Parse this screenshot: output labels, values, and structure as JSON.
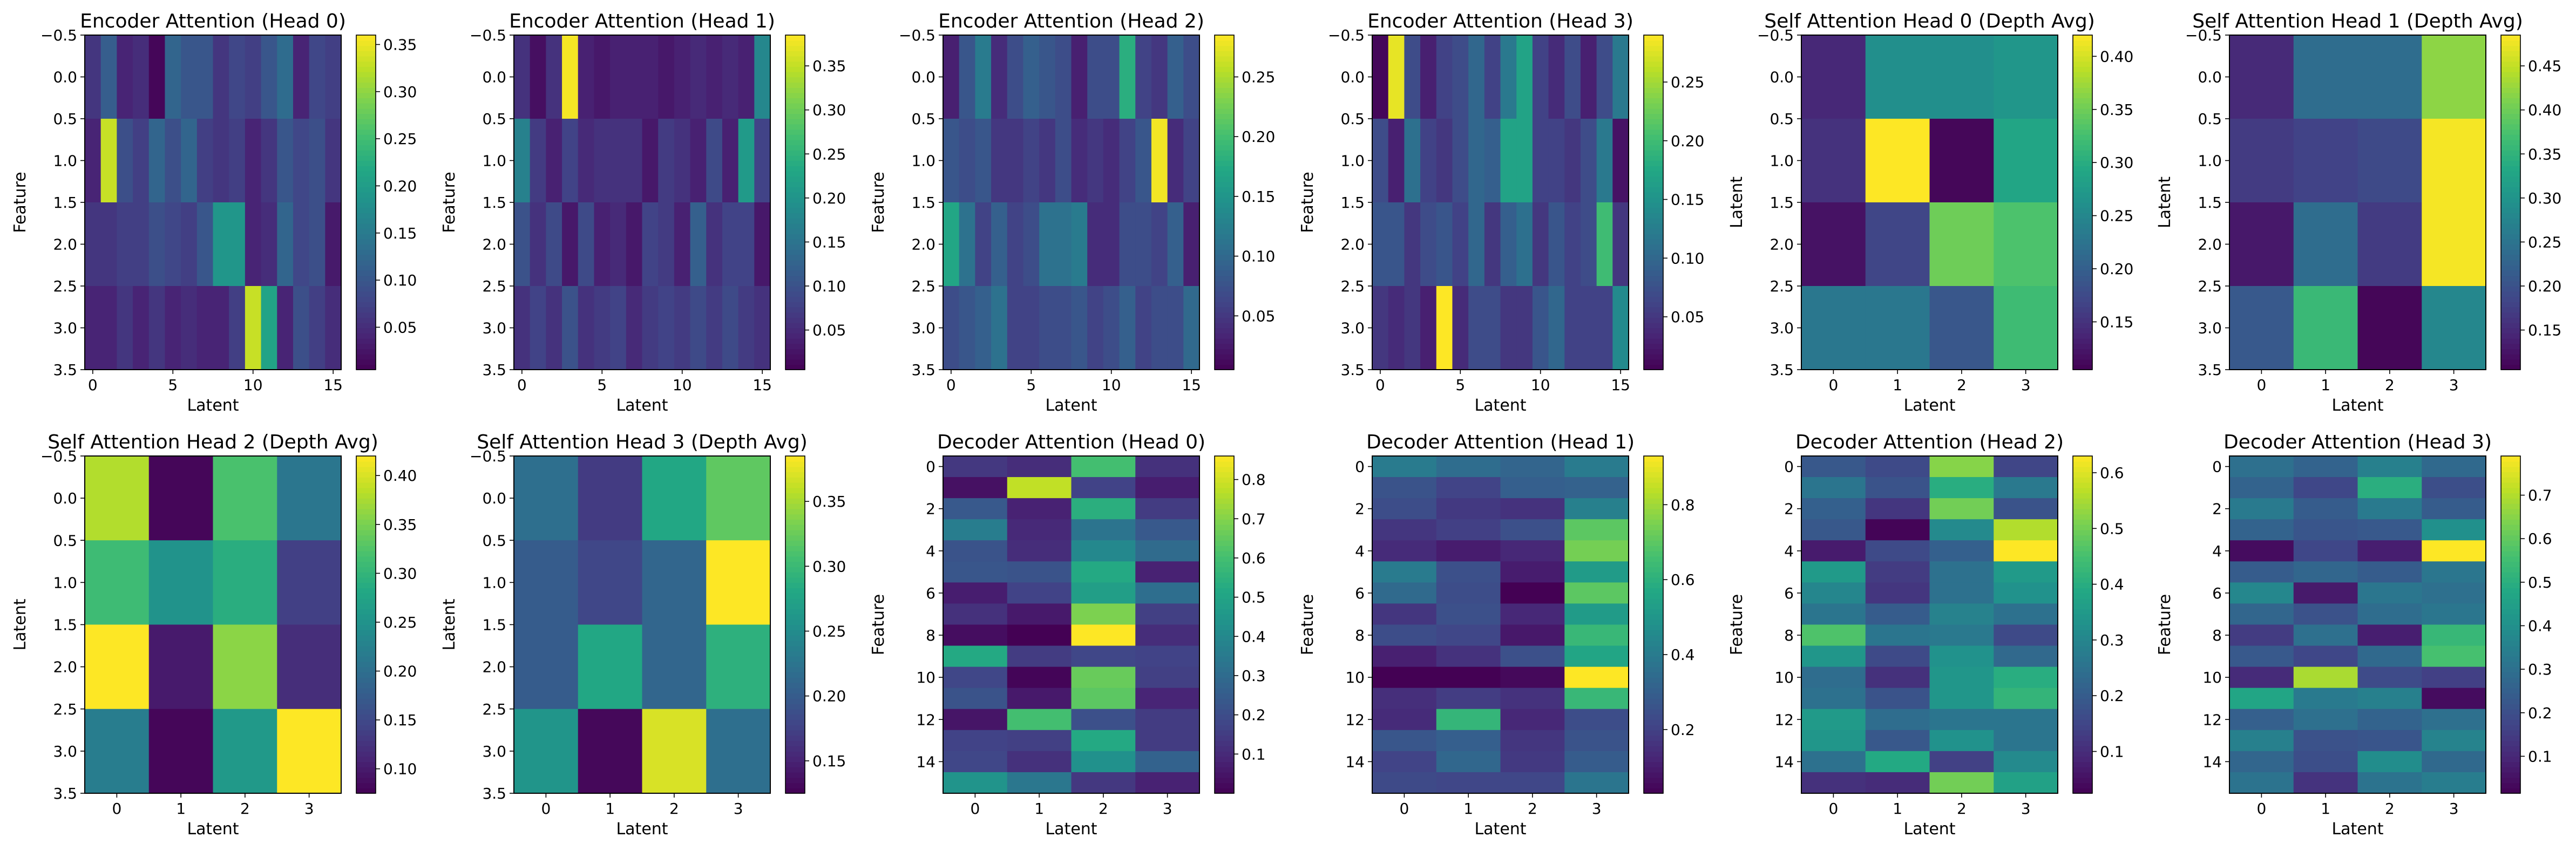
{
  "chart_data": [
    {
      "type": "heatmap",
      "title": "Encoder Attention (Head 0)",
      "xlabel": "Latent",
      "ylabel": "Feature",
      "x_tick_labels": [
        "0",
        "5",
        "10",
        "15"
      ],
      "y_tick_labels": [
        "−0.5",
        "0.0",
        "0.5",
        "1.0",
        "1.5",
        "2.0",
        "2.5",
        "3.0",
        "3.5"
      ],
      "colorbar_tick_labels": [
        "0.05",
        "0.10",
        "0.15",
        "0.20",
        "0.25",
        "0.30",
        "0.35"
      ],
      "xlim": [
        -0.5,
        15.5
      ],
      "ylim": [
        3.5,
        -0.5
      ],
      "clim": [
        0.005,
        0.36
      ],
      "values": [
        [
          0.06,
          0.11,
          0.04,
          0.05,
          0.01,
          0.12,
          0.1,
          0.1,
          0.06,
          0.08,
          0.07,
          0.1,
          0.13,
          0.04,
          0.08,
          0.07
        ],
        [
          0.04,
          0.33,
          0.09,
          0.07,
          0.12,
          0.09,
          0.12,
          0.07,
          0.06,
          0.07,
          0.04,
          0.06,
          0.1,
          0.08,
          0.09,
          0.06
        ],
        [
          0.06,
          0.06,
          0.07,
          0.07,
          0.09,
          0.08,
          0.07,
          0.1,
          0.19,
          0.19,
          0.04,
          0.05,
          0.12,
          0.08,
          0.09,
          0.03
        ],
        [
          0.04,
          0.04,
          0.06,
          0.04,
          0.06,
          0.04,
          0.05,
          0.04,
          0.04,
          0.07,
          0.33,
          0.21,
          0.04,
          0.09,
          0.07,
          0.05
        ]
      ]
    },
    {
      "type": "heatmap",
      "title": "Encoder Attention (Head 1)",
      "xlabel": "Latent",
      "ylabel": "Feature",
      "x_tick_labels": [
        "0",
        "5",
        "10",
        "15"
      ],
      "y_tick_labels": [
        "−0.5",
        "0.0",
        "0.5",
        "1.0",
        "1.5",
        "2.0",
        "2.5",
        "3.0",
        "3.5"
      ],
      "colorbar_tick_labels": [
        "0.05",
        "0.10",
        "0.15",
        "0.20",
        "0.25",
        "0.30",
        "0.35"
      ],
      "xlim": [
        -0.5,
        15.5
      ],
      "ylim": [
        3.5,
        -0.5
      ],
      "clim": [
        0.005,
        0.385
      ],
      "values": [
        [
          0.06,
          0.02,
          0.06,
          0.38,
          0.04,
          0.03,
          0.04,
          0.04,
          0.04,
          0.03,
          0.04,
          0.05,
          0.04,
          0.05,
          0.04,
          0.18
        ],
        [
          0.17,
          0.07,
          0.04,
          0.08,
          0.05,
          0.06,
          0.06,
          0.06,
          0.03,
          0.07,
          0.06,
          0.04,
          0.09,
          0.04,
          0.21,
          0.08
        ],
        [
          0.1,
          0.06,
          0.09,
          0.03,
          0.09,
          0.04,
          0.05,
          0.03,
          0.08,
          0.07,
          0.04,
          0.12,
          0.06,
          0.08,
          0.08,
          0.03
        ],
        [
          0.06,
          0.08,
          0.06,
          0.1,
          0.06,
          0.07,
          0.08,
          0.05,
          0.07,
          0.08,
          0.07,
          0.09,
          0.07,
          0.09,
          0.07,
          0.06
        ]
      ]
    },
    {
      "type": "heatmap",
      "title": "Encoder Attention (Head 2)",
      "xlabel": "Latent",
      "ylabel": "Feature",
      "x_tick_labels": [
        "0",
        "5",
        "10",
        "15"
      ],
      "y_tick_labels": [
        "−0.5",
        "0.0",
        "0.5",
        "1.0",
        "1.5",
        "2.0",
        "2.5",
        "3.0",
        "3.5"
      ],
      "colorbar_tick_labels": [
        "0.05",
        "0.10",
        "0.15",
        "0.20",
        "0.25"
      ],
      "xlim": [
        -0.5,
        15.5
      ],
      "ylim": [
        3.5,
        -0.5
      ],
      "clim": [
        0.005,
        0.285
      ],
      "values": [
        [
          0.03,
          0.08,
          0.12,
          0.04,
          0.07,
          0.09,
          0.08,
          0.07,
          0.03,
          0.07,
          0.07,
          0.18,
          0.06,
          0.05,
          0.09,
          0.07
        ],
        [
          0.08,
          0.07,
          0.08,
          0.05,
          0.05,
          0.06,
          0.05,
          0.07,
          0.04,
          0.05,
          0.04,
          0.06,
          0.08,
          0.28,
          0.04,
          0.06
        ],
        [
          0.17,
          0.11,
          0.06,
          0.09,
          0.06,
          0.07,
          0.11,
          0.11,
          0.12,
          0.04,
          0.04,
          0.07,
          0.07,
          0.06,
          0.09,
          0.03
        ],
        [
          0.07,
          0.08,
          0.09,
          0.11,
          0.06,
          0.06,
          0.07,
          0.07,
          0.08,
          0.06,
          0.07,
          0.09,
          0.06,
          0.07,
          0.07,
          0.1
        ]
      ]
    },
    {
      "type": "heatmap",
      "title": "Encoder Attention (Head 3)",
      "xlabel": "Latent",
      "ylabel": "Feature",
      "x_tick_labels": [
        "0",
        "5",
        "10",
        "15"
      ],
      "y_tick_labels": [
        "−0.5",
        "0.0",
        "0.5",
        "1.0",
        "1.5",
        "2.0",
        "2.5",
        "3.0",
        "3.5"
      ],
      "colorbar_tick_labels": [
        "0.05",
        "0.10",
        "0.15",
        "0.20",
        "0.25"
      ],
      "xlim": [
        -0.5,
        15.5
      ],
      "ylim": [
        3.5,
        -0.5
      ],
      "clim": [
        0.005,
        0.29
      ],
      "values": [
        [
          0.01,
          0.28,
          0.07,
          0.03,
          0.06,
          0.07,
          0.1,
          0.06,
          0.12,
          0.17,
          0.06,
          0.04,
          0.07,
          0.03,
          0.07,
          0.12
        ],
        [
          0.07,
          0.03,
          0.11,
          0.06,
          0.05,
          0.07,
          0.1,
          0.09,
          0.17,
          0.17,
          0.06,
          0.06,
          0.05,
          0.07,
          0.12,
          0.02
        ],
        [
          0.08,
          0.08,
          0.05,
          0.07,
          0.08,
          0.06,
          0.1,
          0.05,
          0.09,
          0.11,
          0.05,
          0.08,
          0.06,
          0.07,
          0.2,
          0.05
        ],
        [
          0.05,
          0.04,
          0.05,
          0.03,
          0.29,
          0.04,
          0.07,
          0.07,
          0.05,
          0.05,
          0.08,
          0.1,
          0.06,
          0.06,
          0.06,
          0.14
        ]
      ]
    },
    {
      "type": "heatmap",
      "title": "Self Attention Head 0 (Depth Avg)",
      "xlabel": "Latent",
      "ylabel": "Latent",
      "x_tick_labels": [
        "0",
        "1",
        "2",
        "3"
      ],
      "y_tick_labels": [
        "−0.5",
        "0.0",
        "0.5",
        "1.0",
        "1.5",
        "2.0",
        "2.5",
        "3.0",
        "3.5"
      ],
      "colorbar_tick_labels": [
        "0.15",
        "0.20",
        "0.25",
        "0.30",
        "0.35",
        "0.40"
      ],
      "xlim": [
        -0.5,
        3.5
      ],
      "ylim": [
        3.5,
        -0.5
      ],
      "clim": [
        0.105,
        0.42
      ],
      "values": [
        [
          0.14,
          0.26,
          0.26,
          0.27
        ],
        [
          0.15,
          0.42,
          0.11,
          0.29
        ],
        [
          0.12,
          0.17,
          0.35,
          0.33
        ],
        [
          0.23,
          0.23,
          0.19,
          0.32
        ]
      ]
    },
    {
      "type": "heatmap",
      "title": "Self Attention Head 1 (Depth Avg)",
      "xlabel": "Latent",
      "ylabel": "Latent",
      "x_tick_labels": [
        "0",
        "1",
        "2",
        "3"
      ],
      "y_tick_labels": [
        "−0.5",
        "0.0",
        "0.5",
        "1.0",
        "1.5",
        "2.0",
        "2.5",
        "3.0",
        "3.5"
      ],
      "colorbar_tick_labels": [
        "0.15",
        "0.20",
        "0.25",
        "0.30",
        "0.35",
        "0.40",
        "0.45"
      ],
      "xlim": [
        -0.5,
        3.5
      ],
      "ylim": [
        3.5,
        -0.5
      ],
      "clim": [
        0.105,
        0.485
      ],
      "values": [
        [
          0.15,
          0.24,
          0.24,
          0.42
        ],
        [
          0.17,
          0.18,
          0.19,
          0.48
        ],
        [
          0.13,
          0.24,
          0.17,
          0.48
        ],
        [
          0.21,
          0.36,
          0.11,
          0.28
        ]
      ]
    },
    {
      "type": "heatmap",
      "title": "Self Attention Head 2 (Depth Avg)",
      "xlabel": "Latent",
      "ylabel": "Latent",
      "x_tick_labels": [
        "0",
        "1",
        "2",
        "3"
      ],
      "y_tick_labels": [
        "−0.5",
        "0.0",
        "0.5",
        "1.0",
        "1.5",
        "2.0",
        "2.5",
        "3.0",
        "3.5"
      ],
      "colorbar_tick_labels": [
        "0.10",
        "0.15",
        "0.20",
        "0.25",
        "0.30",
        "0.35",
        "0.40"
      ],
      "xlim": [
        -0.5,
        3.5
      ],
      "ylim": [
        3.5,
        -0.5
      ],
      "clim": [
        0.075,
        0.42
      ],
      "values": [
        [
          0.38,
          0.08,
          0.32,
          0.21
        ],
        [
          0.31,
          0.25,
          0.29,
          0.14
        ],
        [
          0.42,
          0.1,
          0.36,
          0.12
        ],
        [
          0.22,
          0.08,
          0.26,
          0.42
        ]
      ]
    },
    {
      "type": "heatmap",
      "title": "Self Attention Head 3 (Depth Avg)",
      "xlabel": "Latent",
      "ylabel": "Latent",
      "x_tick_labels": [
        "0",
        "1",
        "2",
        "3"
      ],
      "y_tick_labels": [
        "−0.5",
        "0.0",
        "0.5",
        "1.0",
        "1.5",
        "2.0",
        "2.5",
        "3.0",
        "3.5"
      ],
      "colorbar_tick_labels": [
        "0.15",
        "0.20",
        "0.25",
        "0.30",
        "0.35"
      ],
      "xlim": [
        -0.5,
        3.5
      ],
      "ylim": [
        3.5,
        -0.5
      ],
      "clim": [
        0.125,
        0.385
      ],
      "values": [
        [
          0.22,
          0.17,
          0.28,
          0.32
        ],
        [
          0.2,
          0.18,
          0.21,
          0.39
        ],
        [
          0.2,
          0.28,
          0.21,
          0.29
        ],
        [
          0.26,
          0.13,
          0.37,
          0.22
        ]
      ]
    },
    {
      "type": "heatmap",
      "title": "Decoder Attention (Head 0)",
      "xlabel": "Latent",
      "ylabel": "Feature",
      "x_tick_labels": [
        "0",
        "1",
        "2",
        "3"
      ],
      "y_tick_labels": [
        "0",
        "2",
        "4",
        "6",
        "8",
        "10",
        "12",
        "14"
      ],
      "colorbar_tick_labels": [
        "0.1",
        "0.2",
        "0.3",
        "0.4",
        "0.5",
        "0.6",
        "0.7",
        "0.8"
      ],
      "xlim": [
        -0.5,
        3.5
      ],
      "ylim": [
        15.5,
        -0.5
      ],
      "clim": [
        0.0,
        0.86
      ],
      "values": [
        [
          0.14,
          0.11,
          0.6,
          0.12
        ],
        [
          0.04,
          0.78,
          0.17,
          0.07
        ],
        [
          0.24,
          0.08,
          0.54,
          0.15
        ],
        [
          0.36,
          0.1,
          0.33,
          0.24
        ],
        [
          0.22,
          0.11,
          0.4,
          0.3
        ],
        [
          0.23,
          0.22,
          0.52,
          0.08
        ],
        [
          0.07,
          0.17,
          0.48,
          0.31
        ],
        [
          0.12,
          0.06,
          0.69,
          0.16
        ],
        [
          0.03,
          0.0,
          0.86,
          0.11
        ],
        [
          0.52,
          0.15,
          0.18,
          0.17
        ],
        [
          0.18,
          0.01,
          0.66,
          0.16
        ],
        [
          0.22,
          0.06,
          0.64,
          0.09
        ],
        [
          0.05,
          0.6,
          0.21,
          0.15
        ],
        [
          0.17,
          0.16,
          0.52,
          0.15
        ],
        [
          0.18,
          0.12,
          0.43,
          0.27
        ],
        [
          0.44,
          0.34,
          0.14,
          0.08
        ]
      ]
    },
    {
      "type": "heatmap",
      "title": "Decoder Attention (Head 1)",
      "xlabel": "Latent",
      "ylabel": "Feature",
      "x_tick_labels": [
        "0",
        "1",
        "2",
        "3"
      ],
      "y_tick_labels": [
        "0",
        "2",
        "4",
        "6",
        "8",
        "10",
        "12",
        "14"
      ],
      "colorbar_tick_labels": [
        "0.2",
        "0.4",
        "0.6",
        "0.8"
      ],
      "xlim": [
        -0.5,
        3.5
      ],
      "ylim": [
        15.5,
        -0.5
      ],
      "clim": [
        0.03,
        0.93
      ],
      "values": [
        [
          0.4,
          0.35,
          0.32,
          0.4
        ],
        [
          0.26,
          0.21,
          0.3,
          0.31
        ],
        [
          0.24,
          0.18,
          0.16,
          0.42
        ],
        [
          0.17,
          0.2,
          0.25,
          0.7
        ],
        [
          0.14,
          0.1,
          0.13,
          0.74
        ],
        [
          0.4,
          0.25,
          0.1,
          0.52
        ],
        [
          0.34,
          0.24,
          0.03,
          0.7
        ],
        [
          0.17,
          0.25,
          0.13,
          0.52
        ],
        [
          0.24,
          0.22,
          0.09,
          0.63
        ],
        [
          0.11,
          0.16,
          0.25,
          0.56
        ],
        [
          0.03,
          0.03,
          0.05,
          0.93
        ],
        [
          0.15,
          0.19,
          0.16,
          0.63
        ],
        [
          0.14,
          0.62,
          0.13,
          0.24
        ],
        [
          0.27,
          0.3,
          0.17,
          0.26
        ],
        [
          0.21,
          0.33,
          0.18,
          0.29
        ],
        [
          0.23,
          0.22,
          0.22,
          0.38
        ]
      ]
    },
    {
      "type": "heatmap",
      "title": "Decoder Attention (Head 2)",
      "xlabel": "Latent",
      "ylabel": "Feature",
      "x_tick_labels": [
        "0",
        "1",
        "2",
        "3"
      ],
      "y_tick_labels": [
        "0",
        "2",
        "4",
        "6",
        "8",
        "10",
        "12",
        "14"
      ],
      "colorbar_tick_labels": [
        "0.1",
        "0.2",
        "0.3",
        "0.4",
        "0.5",
        "0.6"
      ],
      "xlim": [
        -0.5,
        3.5
      ],
      "ylim": [
        15.5,
        -0.5
      ],
      "clim": [
        0.025,
        0.63
      ],
      "values": [
        [
          0.19,
          0.16,
          0.52,
          0.15
        ],
        [
          0.26,
          0.18,
          0.4,
          0.27
        ],
        [
          0.21,
          0.12,
          0.5,
          0.18
        ],
        [
          0.19,
          0.03,
          0.31,
          0.56
        ],
        [
          0.07,
          0.16,
          0.21,
          0.63
        ],
        [
          0.35,
          0.13,
          0.25,
          0.35
        ],
        [
          0.3,
          0.12,
          0.25,
          0.33
        ],
        [
          0.26,
          0.2,
          0.29,
          0.25
        ],
        [
          0.46,
          0.26,
          0.27,
          0.16
        ],
        [
          0.34,
          0.16,
          0.33,
          0.23
        ],
        [
          0.24,
          0.11,
          0.34,
          0.4
        ],
        [
          0.25,
          0.18,
          0.34,
          0.42
        ],
        [
          0.35,
          0.24,
          0.26,
          0.26
        ],
        [
          0.34,
          0.19,
          0.33,
          0.26
        ],
        [
          0.25,
          0.39,
          0.14,
          0.31
        ],
        [
          0.11,
          0.1,
          0.5,
          0.37
        ]
      ]
    },
    {
      "type": "heatmap",
      "title": "Decoder Attention (Head 3)",
      "xlabel": "Latent",
      "ylabel": "Feature",
      "x_tick_labels": [
        "0",
        "1",
        "2",
        "3"
      ],
      "y_tick_labels": [
        "0",
        "2",
        "4",
        "6",
        "8",
        "10",
        "12",
        "14"
      ],
      "colorbar_tick_labels": [
        "0.1",
        "0.2",
        "0.3",
        "0.4",
        "0.5",
        "0.6",
        "0.7"
      ],
      "xlim": [
        -0.5,
        3.5
      ],
      "ylim": [
        15.5,
        -0.5
      ],
      "clim": [
        0.015,
        0.79
      ],
      "values": [
        [
          0.3,
          0.26,
          0.35,
          0.28
        ],
        [
          0.26,
          0.18,
          0.5,
          0.2
        ],
        [
          0.33,
          0.24,
          0.33,
          0.24
        ],
        [
          0.26,
          0.22,
          0.23,
          0.4
        ],
        [
          0.04,
          0.18,
          0.08,
          0.79
        ],
        [
          0.24,
          0.27,
          0.24,
          0.32
        ],
        [
          0.37,
          0.07,
          0.32,
          0.3
        ],
        [
          0.27,
          0.21,
          0.29,
          0.32
        ],
        [
          0.15,
          0.3,
          0.08,
          0.53
        ],
        [
          0.23,
          0.18,
          0.28,
          0.56
        ],
        [
          0.11,
          0.69,
          0.19,
          0.16
        ],
        [
          0.47,
          0.33,
          0.35,
          0.04
        ],
        [
          0.25,
          0.3,
          0.26,
          0.3
        ],
        [
          0.35,
          0.21,
          0.22,
          0.36
        ],
        [
          0.27,
          0.2,
          0.39,
          0.28
        ],
        [
          0.31,
          0.13,
          0.31,
          0.34
        ]
      ]
    }
  ]
}
